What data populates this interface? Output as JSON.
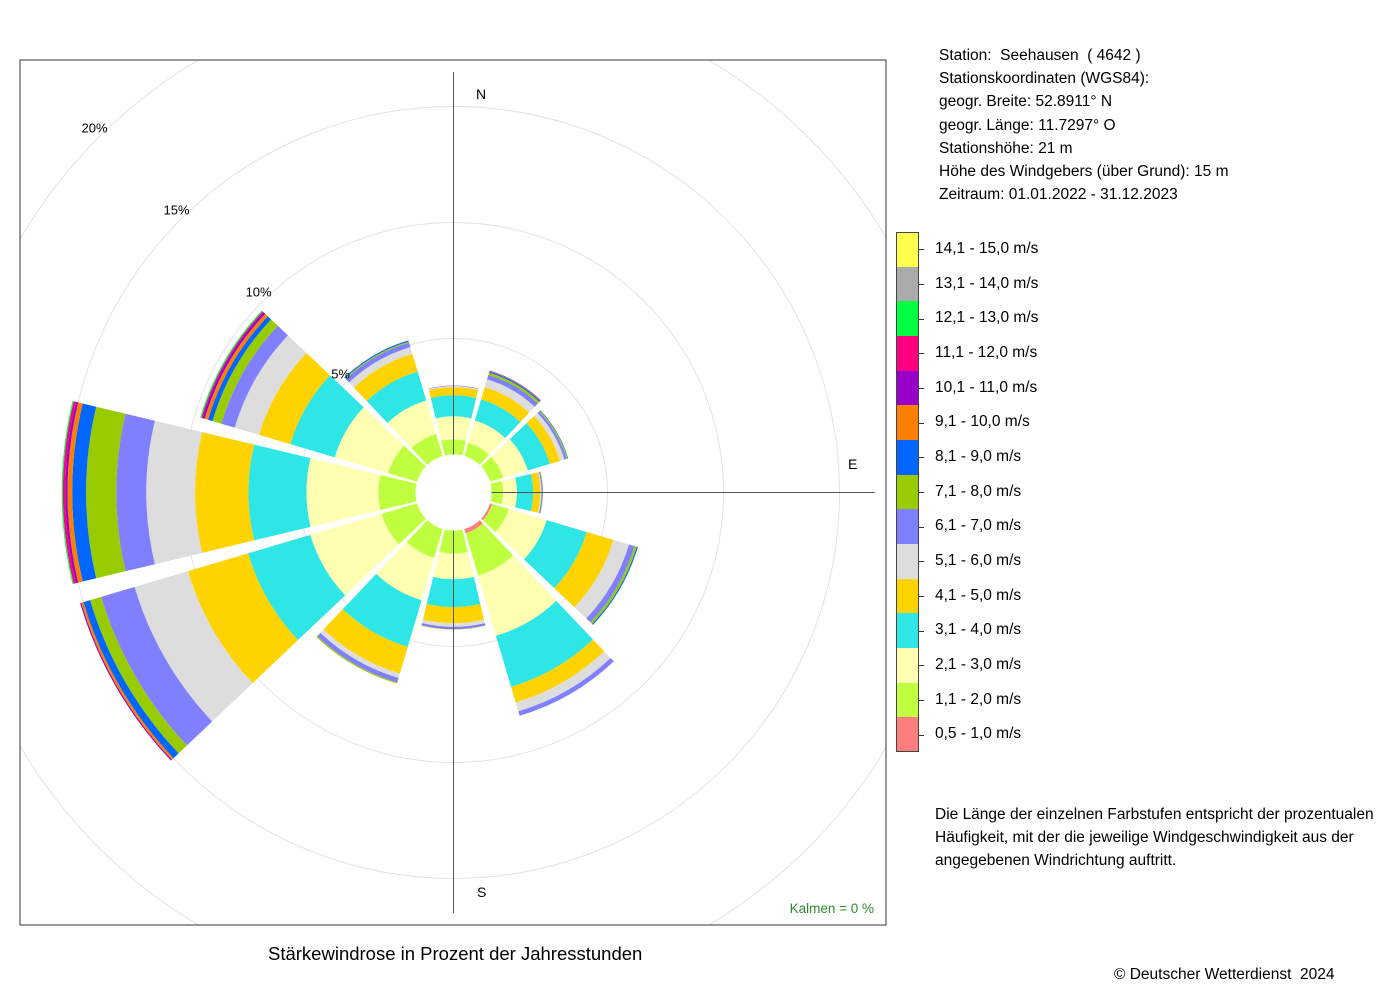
{
  "station_info": {
    "line1": "Station:  Seehausen  ( 4642 )",
    "line2": "Stationskoordinaten (WGS84):",
    "line3": "geogr. Breite: 52.8911° N",
    "line4": "geogr. Länge: 11.7297° O",
    "line5": "Stationshöhe: 21 m",
    "line6": "Höhe des Windgebers (über Grund): 15 m",
    "line7": "Zeitraum: 01.01.2022 - 31.12.2023"
  },
  "note": {
    "line1": "Die Länge der einzelnen Farbstufen entspricht der prozentualen",
    "line2": "Häufigkeit, mit der die jeweilige Windgeschwindigkeit aus der",
    "line3": "angegebenen Windrichtung auftritt."
  },
  "caption": "Stärkewindrose in Prozent der Jahresstunden",
  "copyright": "© Deutscher Wetterdienst  2024",
  "calm_label": "Kalmen  =  0 %",
  "chart_data": {
    "type": "polar-stacked-bar",
    "direction_labels": {
      "north": "N",
      "east": "E",
      "south": "S"
    },
    "ring_labels": [
      "5%",
      "10%",
      "15%",
      "20%"
    ],
    "ring_values": [
      5,
      10,
      15,
      20
    ],
    "bins": [
      {
        "label": "0,5 - 1,0 m/s",
        "color": "#FF7F7F"
      },
      {
        "label": "1,1 - 2,0 m/s",
        "color": "#BFFF3F"
      },
      {
        "label": "2,1 - 3,0 m/s",
        "color": "#FFFFB2"
      },
      {
        "label": "3,1 - 4,0 m/s",
        "color": "#2EE6E6"
      },
      {
        "label": "4,1 - 5,0 m/s",
        "color": "#FFD300"
      },
      {
        "label": "5,1 - 6,0 m/s",
        "color": "#DDDDDD"
      },
      {
        "label": "6,1 - 7,0 m/s",
        "color": "#8080FF"
      },
      {
        "label": "7,1 - 8,0 m/s",
        "color": "#99CC00"
      },
      {
        "label": "8,1 - 9,0 m/s",
        "color": "#0066FF"
      },
      {
        "label": "9,1 - 10,0 m/s",
        "color": "#FF8000"
      },
      {
        "label": "10,1 - 11,0 m/s",
        "color": "#9900CC"
      },
      {
        "label": "11,1 - 12,0 m/s",
        "color": "#FF0080"
      },
      {
        "label": "12,1 - 13,0 m/s",
        "color": "#00FF40"
      },
      {
        "label": "13,1 - 14,0 m/s",
        "color": "#AAAAAA"
      },
      {
        "label": "14,1 - 15,0 m/s",
        "color": "#FFFF4D"
      }
    ],
    "sectors": [
      {
        "direction": 0,
        "values": [
          0.0,
          0.65,
          1.0,
          0.9,
          0.35,
          0.05,
          0.02,
          0.0,
          0.0,
          0.0,
          0.0,
          0.0,
          0.0,
          0.0,
          0.0
        ]
      },
      {
        "direction": 30,
        "values": [
          0.0,
          0.6,
          1.0,
          0.95,
          0.55,
          0.35,
          0.2,
          0.1,
          0.05,
          0.02,
          0.02,
          0.0,
          0.0,
          0.0,
          0.0
        ]
      },
      {
        "direction": 60,
        "values": [
          0.0,
          0.6,
          1.1,
          1.0,
          0.45,
          0.2,
          0.1,
          0.05,
          0.02,
          0.0,
          0.0,
          0.0,
          0.0,
          0.0,
          0.0
        ]
      },
      {
        "direction": 90,
        "values": [
          0.0,
          0.5,
          0.6,
          0.7,
          0.3,
          0.05,
          0.05,
          0.02,
          0.0,
          0.0,
          0.0,
          0.0,
          0.0,
          0.0,
          0.0
        ]
      },
      {
        "direction": 120,
        "values": [
          0.1,
          0.75,
          1.7,
          1.8,
          1.2,
          0.7,
          0.25,
          0.1,
          0.05,
          0.0,
          0.0,
          0.0,
          0.0,
          0.0,
          0.0
        ]
      },
      {
        "direction": 150,
        "values": [
          0.2,
          1.9,
          2.7,
          2.3,
          0.7,
          0.4,
          0.2,
          0.0,
          0.0,
          0.0,
          0.0,
          0.0,
          0.0,
          0.0,
          0.0
        ]
      },
      {
        "direction": 180,
        "values": [
          0.0,
          1.0,
          1.1,
          1.2,
          0.7,
          0.15,
          0.1,
          0.02,
          0.0,
          0.0,
          0.0,
          0.0,
          0.0,
          0.0,
          0.0
        ]
      },
      {
        "direction": 210,
        "values": [
          0.0,
          1.3,
          1.9,
          2.1,
          1.2,
          0.2,
          0.2,
          0.05,
          0.0,
          0.0,
          0.0,
          0.0,
          0.0,
          0.0,
          0.0
        ]
      },
      {
        "direction": 240,
        "values": [
          0.0,
          1.6,
          3.2,
          2.8,
          2.7,
          2.4,
          1.5,
          0.5,
          0.3,
          0.1,
          0.05,
          0.0,
          0.0,
          0.0,
          0.0
        ]
      },
      {
        "direction": 270,
        "values": [
          0.0,
          1.6,
          3.1,
          2.5,
          2.3,
          2.1,
          1.3,
          1.3,
          0.6,
          0.2,
          0.1,
          0.1,
          0.05,
          0.0,
          0.0
        ]
      },
      {
        "direction": 300,
        "values": [
          0.0,
          1.3,
          2.4,
          2.0,
          1.4,
          1.1,
          0.6,
          0.4,
          0.2,
          0.15,
          0.1,
          0.05,
          0.05,
          0.0,
          0.0
        ]
      },
      {
        "direction": 330,
        "values": [
          0.0,
          1.0,
          1.5,
          1.3,
          0.8,
          0.3,
          0.2,
          0.05,
          0.05,
          0.0,
          0.0,
          0.0,
          0.0,
          0.0,
          0.0
        ]
      }
    ]
  }
}
